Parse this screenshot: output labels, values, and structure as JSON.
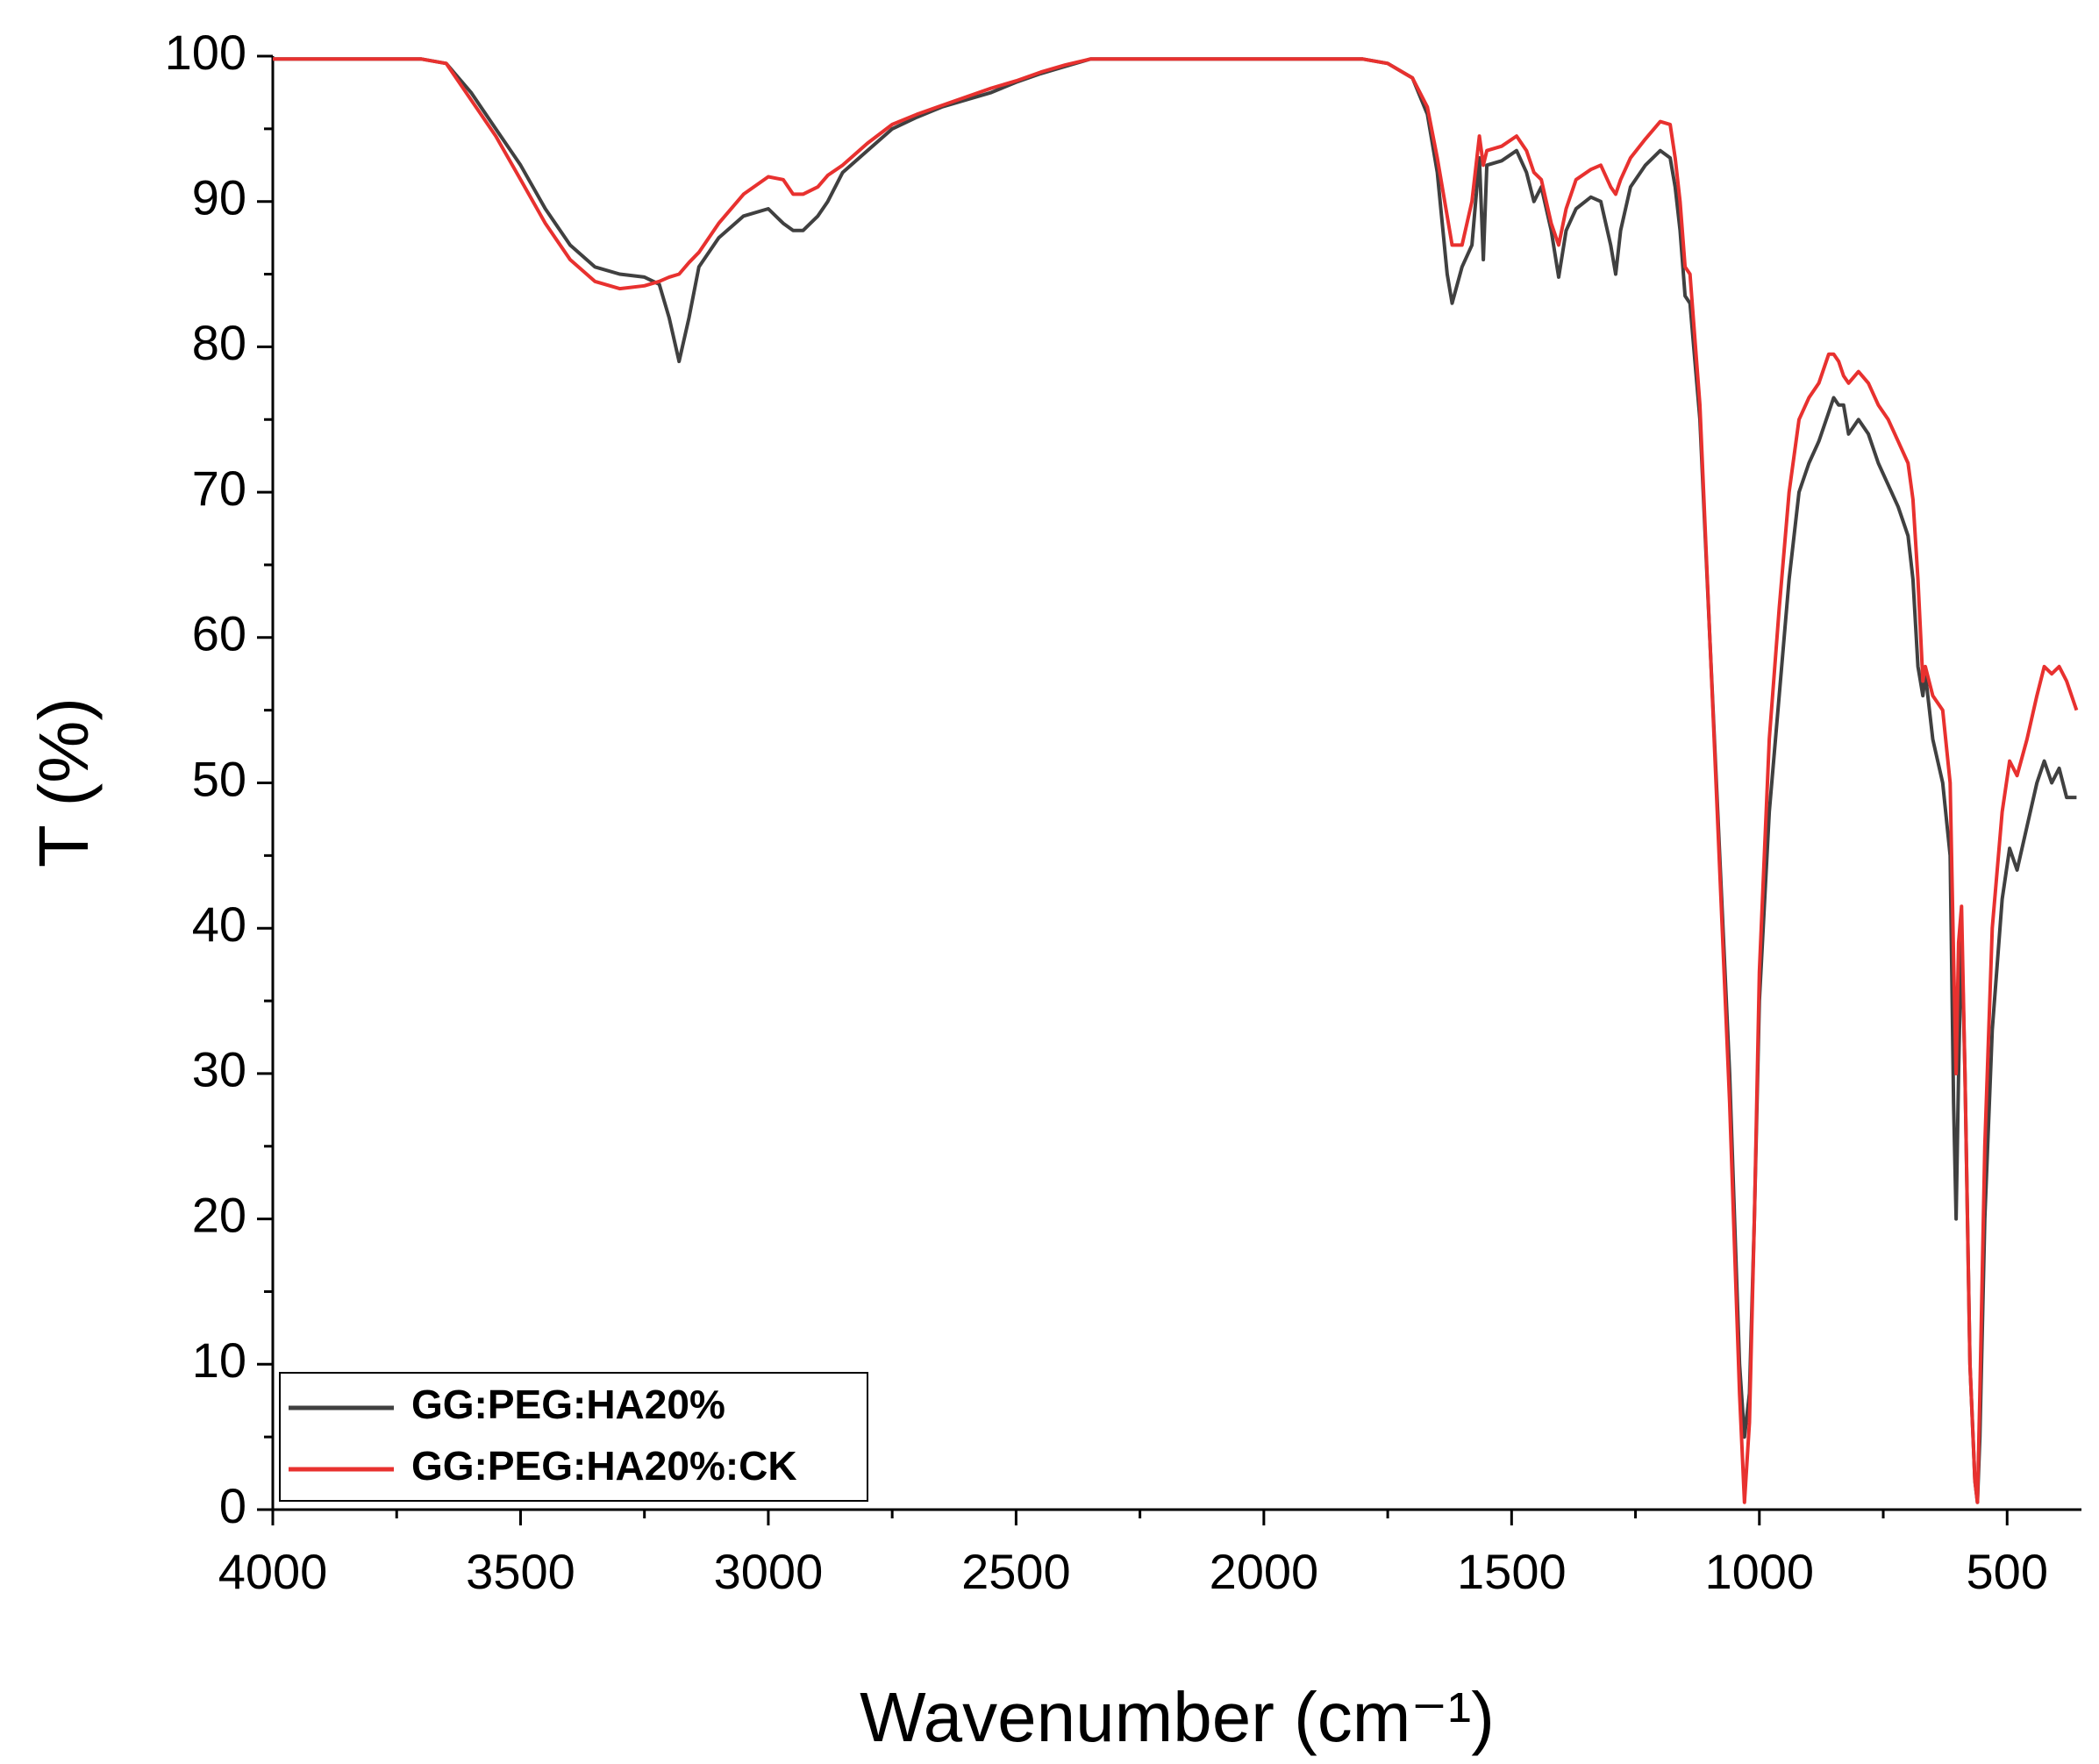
{
  "chart_data": {
    "type": "line",
    "x_label": "Wavenumber (cm⁻¹)",
    "y_label": "T (%)",
    "xlim": [
      4000,
      350
    ],
    "ylim": [
      0,
      100
    ],
    "xticks": [
      4000,
      3500,
      3000,
      2500,
      2000,
      1500,
      1000,
      500
    ],
    "yticks": [
      0,
      10,
      20,
      30,
      40,
      50,
      60,
      70,
      80,
      90,
      100
    ],
    "legend": "lower left",
    "x": [
      4000,
      3700,
      3650,
      3600,
      3550,
      3500,
      3450,
      3400,
      3350,
      3300,
      3250,
      3220,
      3200,
      3180,
      3160,
      3140,
      3100,
      3050,
      3000,
      2970,
      2950,
      2930,
      2900,
      2880,
      2850,
      2800,
      2750,
      2700,
      2650,
      2600,
      2550,
      2500,
      2450,
      2400,
      2350,
      2300,
      2000,
      1800,
      1750,
      1700,
      1670,
      1650,
      1630,
      1620,
      1600,
      1580,
      1565,
      1557,
      1550,
      1520,
      1490,
      1470,
      1455,
      1440,
      1420,
      1405,
      1390,
      1370,
      1340,
      1320,
      1300,
      1290,
      1280,
      1260,
      1230,
      1200,
      1180,
      1170,
      1160,
      1150,
      1140,
      1120,
      1100,
      1080,
      1060,
      1050,
      1040,
      1030,
      1020,
      1010,
      1000,
      980,
      960,
      940,
      920,
      900,
      880,
      860,
      850,
      840,
      830,
      820,
      800,
      780,
      760,
      740,
      720,
      700,
      690,
      680,
      670,
      665,
      650,
      630,
      615,
      608,
      603,
      598,
      592,
      585,
      575,
      565,
      560,
      555,
      545,
      530,
      510,
      495,
      480,
      460,
      440,
      425,
      410,
      395,
      380,
      360
    ],
    "series": [
      {
        "name": "GG:PEG:HA20%",
        "color": "#404040",
        "values": [
          99.8,
          99.8,
          99.5,
          97.5,
          95,
          92.5,
          89.5,
          87,
          85.5,
          85,
          84.8,
          84.3,
          82,
          79,
          82,
          85.5,
          87.5,
          89,
          89.5,
          88.5,
          88,
          88,
          89,
          90,
          92,
          93.5,
          95,
          95.8,
          96.5,
          97,
          97.5,
          98.2,
          98.8,
          99.3,
          99.8,
          99.8,
          99.8,
          99.8,
          99.5,
          98.5,
          96,
          92,
          85,
          83,
          85.5,
          87,
          93,
          86,
          92.5,
          92.8,
          93.5,
          92,
          90,
          91,
          88,
          84.8,
          88,
          89.5,
          90.3,
          90,
          87,
          85,
          88,
          91,
          92.5,
          93.5,
          93,
          91,
          88,
          83.5,
          83,
          75,
          60,
          45,
          30,
          20,
          10,
          5,
          8,
          20,
          35,
          48,
          56,
          64,
          70,
          72,
          73.5,
          75.5,
          76.5,
          76,
          76,
          74,
          75,
          74,
          72,
          70.5,
          69,
          67,
          64,
          58,
          56,
          57.5,
          53,
          50,
          45,
          28,
          20,
          30,
          40,
          30,
          10,
          2,
          0.5,
          5,
          20,
          33,
          42,
          45.5,
          44,
          47,
          50,
          51.5,
          50,
          51,
          49,
          49
        ]
      },
      {
        "name": "GG:PEG:HA20%:CK",
        "color": "#e8312f",
        "values": [
          99.8,
          99.8,
          99.5,
          97,
          94.5,
          91.5,
          88.5,
          86,
          84.5,
          84,
          84.2,
          84.5,
          84.8,
          85,
          85.8,
          86.5,
          88.5,
          90.5,
          91.7,
          91.5,
          90.5,
          90.5,
          91,
          91.8,
          92.5,
          94,
          95.3,
          96,
          96.6,
          97.2,
          97.8,
          98.3,
          98.9,
          99.4,
          99.8,
          99.8,
          99.8,
          99.8,
          99.5,
          98.5,
          96.5,
          93,
          89,
          87,
          87,
          90,
          94.5,
          92.5,
          93.5,
          93.8,
          94.5,
          93.5,
          92,
          91.5,
          88.5,
          87,
          89.5,
          91.5,
          92.2,
          92.5,
          91,
          90.5,
          91.5,
          93,
          94.3,
          95.5,
          95.3,
          93,
          90,
          85.5,
          85,
          76,
          60,
          44,
          28,
          18,
          8,
          0.5,
          6,
          20,
          37,
          53,
          62,
          70,
          75,
          76.5,
          77.5,
          79.5,
          79.5,
          79,
          78,
          77.5,
          78.3,
          77.5,
          76,
          75,
          73.5,
          72,
          69.5,
          64,
          57,
          58,
          56,
          55,
          50,
          38,
          30,
          39,
          41.5,
          30,
          10,
          2,
          0.5,
          8,
          25,
          40,
          48,
          51.5,
          50.5,
          53,
          56,
          58,
          57.5,
          58,
          57,
          55
        ]
      }
    ]
  }
}
